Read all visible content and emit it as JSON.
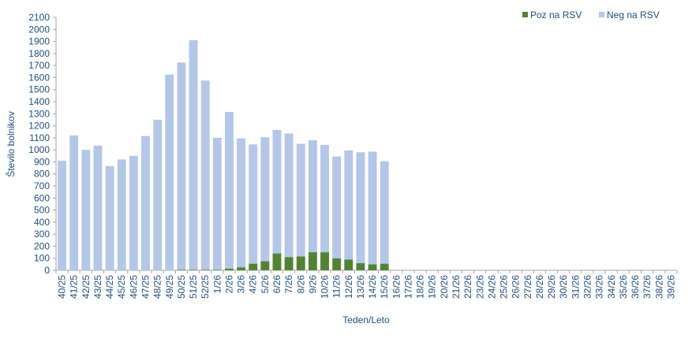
{
  "chart_data": {
    "type": "bar",
    "stacked": true,
    "xlabel": "Teden/Leto",
    "ylabel": "Število bolnikov",
    "ylim": [
      0,
      2100
    ],
    "ytick_step": 100,
    "grid": false,
    "legend_position": "top-right",
    "categories": [
      "40/25",
      "41/25",
      "42/25",
      "43/25",
      "44/25",
      "45/25",
      "46/25",
      "47/25",
      "48/25",
      "49/25",
      "50/25",
      "51/25",
      "52/25",
      "1/26",
      "2/26",
      "3/26",
      "4/26",
      "5/26",
      "6/26",
      "7/26",
      "8/26",
      "9/26",
      "10/26",
      "11/26",
      "12/26",
      "13/26",
      "14/26",
      "15/26",
      "16/26",
      "17/26",
      "18/26",
      "19/26",
      "20/26",
      "21/26",
      "22/26",
      "23/26",
      "24/26",
      "25/26",
      "26/26",
      "27/26",
      "28/26",
      "29/26",
      "30/26",
      "31/26",
      "32/26",
      "33/26",
      "34/26",
      "35/26",
      "36/26",
      "37/26",
      "38/26",
      "39/26"
    ],
    "series": [
      {
        "name": "Poz na RSV",
        "color": "#548235",
        "values": [
          0,
          0,
          0,
          0,
          0,
          0,
          0,
          0,
          0,
          0,
          5,
          5,
          5,
          5,
          15,
          25,
          55,
          75,
          140,
          110,
          115,
          150,
          150,
          100,
          90,
          60,
          50,
          55,
          null,
          null,
          null,
          null,
          null,
          null,
          null,
          null,
          null,
          null,
          null,
          null,
          null,
          null,
          null,
          null,
          null,
          null,
          null,
          null,
          null,
          null,
          null,
          null
        ]
      },
      {
        "name": "Neg na RSV",
        "color": "#b4c7e7",
        "values": [
          910,
          1120,
          1000,
          1035,
          865,
          920,
          950,
          1115,
          1250,
          1625,
          1720,
          1905,
          1570,
          1095,
          1300,
          1070,
          990,
          1030,
          1025,
          1025,
          935,
          930,
          890,
          845,
          905,
          920,
          935,
          850,
          null,
          null,
          null,
          null,
          null,
          null,
          null,
          null,
          null,
          null,
          null,
          null,
          null,
          null,
          null,
          null,
          null,
          null,
          null,
          null,
          null,
          null,
          null,
          null
        ]
      }
    ]
  }
}
